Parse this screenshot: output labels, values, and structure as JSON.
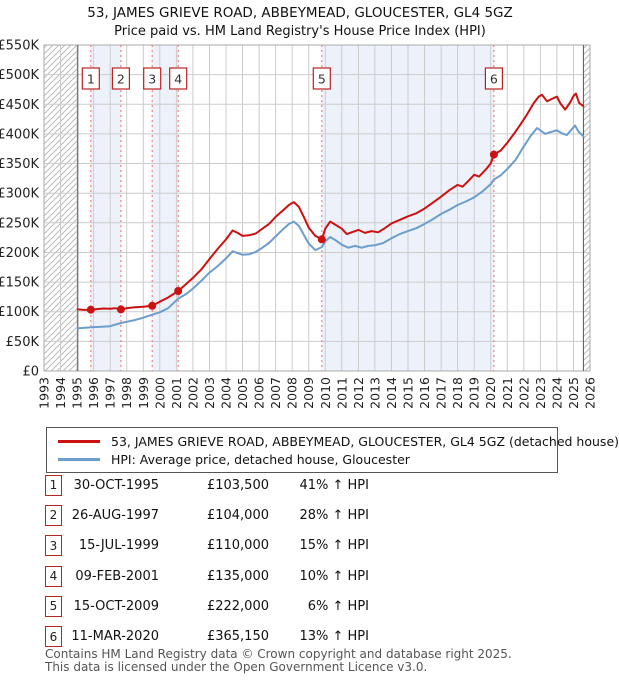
{
  "title": "53, JAMES GRIEVE ROAD, ABBEYMEAD, GLOUCESTER, GL4 5GZ",
  "subtitle": "Price paid vs. HM Land Registry's House Price Index (HPI)",
  "chart_data": {
    "type": "line",
    "x_range": [
      1993,
      2026
    ],
    "y_range": [
      0,
      550000
    ],
    "x_ticks": [
      1993,
      1994,
      1995,
      1996,
      1997,
      1998,
      1999,
      2000,
      2001,
      2002,
      2003,
      2004,
      2005,
      2006,
      2007,
      2008,
      2009,
      2010,
      2011,
      2012,
      2013,
      2014,
      2015,
      2016,
      2017,
      2018,
      2019,
      2020,
      2021,
      2022,
      2023,
      2024,
      2025,
      2026
    ],
    "y_ticks": [
      {
        "value": 550000,
        "label": "£550K"
      },
      {
        "value": 500000,
        "label": "£500K"
      },
      {
        "value": 450000,
        "label": "£450K"
      },
      {
        "value": 400000,
        "label": "£400K"
      },
      {
        "value": 350000,
        "label": "£350K"
      },
      {
        "value": 300000,
        "label": "£300K"
      },
      {
        "value": 250000,
        "label": "£250K"
      },
      {
        "value": 200000,
        "label": "£200K"
      },
      {
        "value": 150000,
        "label": "£150K"
      },
      {
        "value": 100000,
        "label": "£100K"
      },
      {
        "value": 50000,
        "label": "£50K"
      },
      {
        "value": 0,
        "label": "£0"
      }
    ],
    "grid": true,
    "legend_position": "bottom",
    "colors": {
      "property": "#cc1111",
      "hpi": "#6d9dcc",
      "marker_line": "#f28080",
      "ownership_band": "#edf2fa",
      "grid": "#cccccc",
      "border": "#aaaaaa",
      "data_boundary": "#555555",
      "hatch": "#bbbbbb"
    },
    "ownership_bands": [
      [
        1995.83,
        1997.65
      ],
      [
        1999.54,
        2001.11
      ],
      [
        2009.79,
        2020.19
      ]
    ],
    "no_data_regions": [
      [
        1993,
        1995.04
      ],
      [
        2025.6,
        2026
      ]
    ],
    "data_boundaries": [
      1995.04,
      2025.6
    ],
    "sale_markers": [
      {
        "n": 1,
        "x": 1995.83,
        "price": 103500
      },
      {
        "n": 2,
        "x": 1997.65,
        "price": 104000
      },
      {
        "n": 3,
        "x": 1999.54,
        "price": 110000
      },
      {
        "n": 4,
        "x": 2001.11,
        "price": 135000
      },
      {
        "n": 5,
        "x": 2009.79,
        "price": 222000
      },
      {
        "n": 6,
        "x": 2020.19,
        "price": 365150
      }
    ],
    "series": [
      {
        "name": "53, JAMES GRIEVE ROAD, ABBEYMEAD, GLOUCESTER, GL4 5GZ (detached house)",
        "color": "#cc1111",
        "points": [
          [
            1995.04,
            104000
          ],
          [
            1995.4,
            103000
          ],
          [
            1995.83,
            103500
          ],
          [
            1996.2,
            104500
          ],
          [
            1996.6,
            105500
          ],
          [
            1997.0,
            105000
          ],
          [
            1997.3,
            106000
          ],
          [
            1997.65,
            104000
          ],
          [
            1998.0,
            106000
          ],
          [
            1998.5,
            107500
          ],
          [
            1999.0,
            108500
          ],
          [
            1999.54,
            110000
          ],
          [
            2000.0,
            117000
          ],
          [
            2000.5,
            124000
          ],
          [
            2001.11,
            135000
          ],
          [
            2001.6,
            147000
          ],
          [
            2002.0,
            157000
          ],
          [
            2002.5,
            171000
          ],
          [
            2003.0,
            189000
          ],
          [
            2003.5,
            206000
          ],
          [
            2004.0,
            222000
          ],
          [
            2004.4,
            237000
          ],
          [
            2004.7,
            233000
          ],
          [
            2005.0,
            228000
          ],
          [
            2005.4,
            229000
          ],
          [
            2005.8,
            232000
          ],
          [
            2006.2,
            240000
          ],
          [
            2006.6,
            248000
          ],
          [
            2007.0,
            260000
          ],
          [
            2007.4,
            270000
          ],
          [
            2007.8,
            280000
          ],
          [
            2008.1,
            285000
          ],
          [
            2008.4,
            277000
          ],
          [
            2008.7,
            260000
          ],
          [
            2009.0,
            242000
          ],
          [
            2009.4,
            228000
          ],
          [
            2009.79,
            222000
          ],
          [
            2010.0,
            240000
          ],
          [
            2010.3,
            252000
          ],
          [
            2010.6,
            247000
          ],
          [
            2011.0,
            240000
          ],
          [
            2011.3,
            231000
          ],
          [
            2011.7,
            235000
          ],
          [
            2012.0,
            238000
          ],
          [
            2012.4,
            233000
          ],
          [
            2012.8,
            236000
          ],
          [
            2013.2,
            234000
          ],
          [
            2013.6,
            241000
          ],
          [
            2014.0,
            249000
          ],
          [
            2014.5,
            255000
          ],
          [
            2015.0,
            261000
          ],
          [
            2015.5,
            266000
          ],
          [
            2016.0,
            274000
          ],
          [
            2016.5,
            284000
          ],
          [
            2017.0,
            294000
          ],
          [
            2017.5,
            305000
          ],
          [
            2018.0,
            314000
          ],
          [
            2018.3,
            311000
          ],
          [
            2018.7,
            322000
          ],
          [
            2019.0,
            331000
          ],
          [
            2019.3,
            328000
          ],
          [
            2019.7,
            340000
          ],
          [
            2020.0,
            350000
          ],
          [
            2020.19,
            365150
          ],
          [
            2020.6,
            372000
          ],
          [
            2021.0,
            385000
          ],
          [
            2021.4,
            400000
          ],
          [
            2021.8,
            416000
          ],
          [
            2022.2,
            433000
          ],
          [
            2022.6,
            452000
          ],
          [
            2022.9,
            463000
          ],
          [
            2023.1,
            466000
          ],
          [
            2023.4,
            455000
          ],
          [
            2023.7,
            459000
          ],
          [
            2024.0,
            463000
          ],
          [
            2024.2,
            452000
          ],
          [
            2024.5,
            441000
          ],
          [
            2024.8,
            453000
          ],
          [
            2025.0,
            464000
          ],
          [
            2025.15,
            468000
          ],
          [
            2025.35,
            452000
          ],
          [
            2025.6,
            447000
          ]
        ]
      },
      {
        "name": "HPI: Average price, detached house, Gloucester",
        "color": "#6d9dcc",
        "points": [
          [
            1995.04,
            72000
          ],
          [
            1995.5,
            73000
          ],
          [
            1996.0,
            74000
          ],
          [
            1996.5,
            74500
          ],
          [
            1997.0,
            75500
          ],
          [
            1997.65,
            81000
          ],
          [
            1998.0,
            83000
          ],
          [
            1998.5,
            86000
          ],
          [
            1999.0,
            90000
          ],
          [
            1999.54,
            95000
          ],
          [
            2000.0,
            99000
          ],
          [
            2000.5,
            106000
          ],
          [
            2001.11,
            122000
          ],
          [
            2001.6,
            130000
          ],
          [
            2002.0,
            139000
          ],
          [
            2002.5,
            152000
          ],
          [
            2003.0,
            166000
          ],
          [
            2003.5,
            177000
          ],
          [
            2004.0,
            190000
          ],
          [
            2004.4,
            202000
          ],
          [
            2004.7,
            199000
          ],
          [
            2005.0,
            196000
          ],
          [
            2005.4,
            197000
          ],
          [
            2005.8,
            201000
          ],
          [
            2006.2,
            208000
          ],
          [
            2006.6,
            216000
          ],
          [
            2007.0,
            227000
          ],
          [
            2007.4,
            238000
          ],
          [
            2007.8,
            248000
          ],
          [
            2008.1,
            252000
          ],
          [
            2008.4,
            245000
          ],
          [
            2008.7,
            230000
          ],
          [
            2009.0,
            215000
          ],
          [
            2009.4,
            204000
          ],
          [
            2009.79,
            209000
          ],
          [
            2010.0,
            219000
          ],
          [
            2010.3,
            226000
          ],
          [
            2010.6,
            221000
          ],
          [
            2011.0,
            213000
          ],
          [
            2011.4,
            208000
          ],
          [
            2011.8,
            211000
          ],
          [
            2012.2,
            208000
          ],
          [
            2012.6,
            211000
          ],
          [
            2013.0,
            212000
          ],
          [
            2013.5,
            216000
          ],
          [
            2014.0,
            224000
          ],
          [
            2014.5,
            231000
          ],
          [
            2015.0,
            236000
          ],
          [
            2015.5,
            241000
          ],
          [
            2016.0,
            248000
          ],
          [
            2016.5,
            256000
          ],
          [
            2017.0,
            265000
          ],
          [
            2017.5,
            272000
          ],
          [
            2018.0,
            280000
          ],
          [
            2018.5,
            286000
          ],
          [
            2019.0,
            293000
          ],
          [
            2019.5,
            303000
          ],
          [
            2020.0,
            315000
          ],
          [
            2020.19,
            323000
          ],
          [
            2020.6,
            330000
          ],
          [
            2021.0,
            341000
          ],
          [
            2021.5,
            356000
          ],
          [
            2022.0,
            379000
          ],
          [
            2022.4,
            396000
          ],
          [
            2022.8,
            410000
          ],
          [
            2023.0,
            406000
          ],
          [
            2023.3,
            400000
          ],
          [
            2023.6,
            403000
          ],
          [
            2024.0,
            406000
          ],
          [
            2024.3,
            401000
          ],
          [
            2024.6,
            398000
          ],
          [
            2024.9,
            408000
          ],
          [
            2025.1,
            414000
          ],
          [
            2025.3,
            404000
          ],
          [
            2025.6,
            396000
          ]
        ]
      }
    ]
  },
  "legend": {
    "items": [
      {
        "label": "53, JAMES GRIEVE ROAD, ABBEYMEAD, GLOUCESTER, GL4 5GZ (detached house)",
        "color": "#cc1111"
      },
      {
        "label": "HPI: Average price, detached house, Gloucester",
        "color": "#6d9dcc"
      }
    ]
  },
  "table": {
    "rows": [
      {
        "num": "1",
        "date": "30-OCT-1995",
        "price": "£103,500",
        "hpi": "41% ↑ HPI"
      },
      {
        "num": "2",
        "date": "26-AUG-1997",
        "price": "£104,000",
        "hpi": "28% ↑ HPI"
      },
      {
        "num": "3",
        "date": "15-JUL-1999",
        "price": "£110,000",
        "hpi": "15% ↑ HPI"
      },
      {
        "num": "4",
        "date": "09-FEB-2001",
        "price": "£135,000",
        "hpi": "10% ↑ HPI"
      },
      {
        "num": "5",
        "date": "15-OCT-2009",
        "price": "£222,000",
        "hpi": "6% ↑ HPI"
      },
      {
        "num": "6",
        "date": "11-MAR-2020",
        "price": "£365,150",
        "hpi": "13% ↑ HPI"
      }
    ]
  },
  "footer": {
    "line1": "Contains HM Land Registry data © Crown copyright and database right 2025.",
    "line2": "This data is licensed under the Open Government Licence v3.0."
  }
}
